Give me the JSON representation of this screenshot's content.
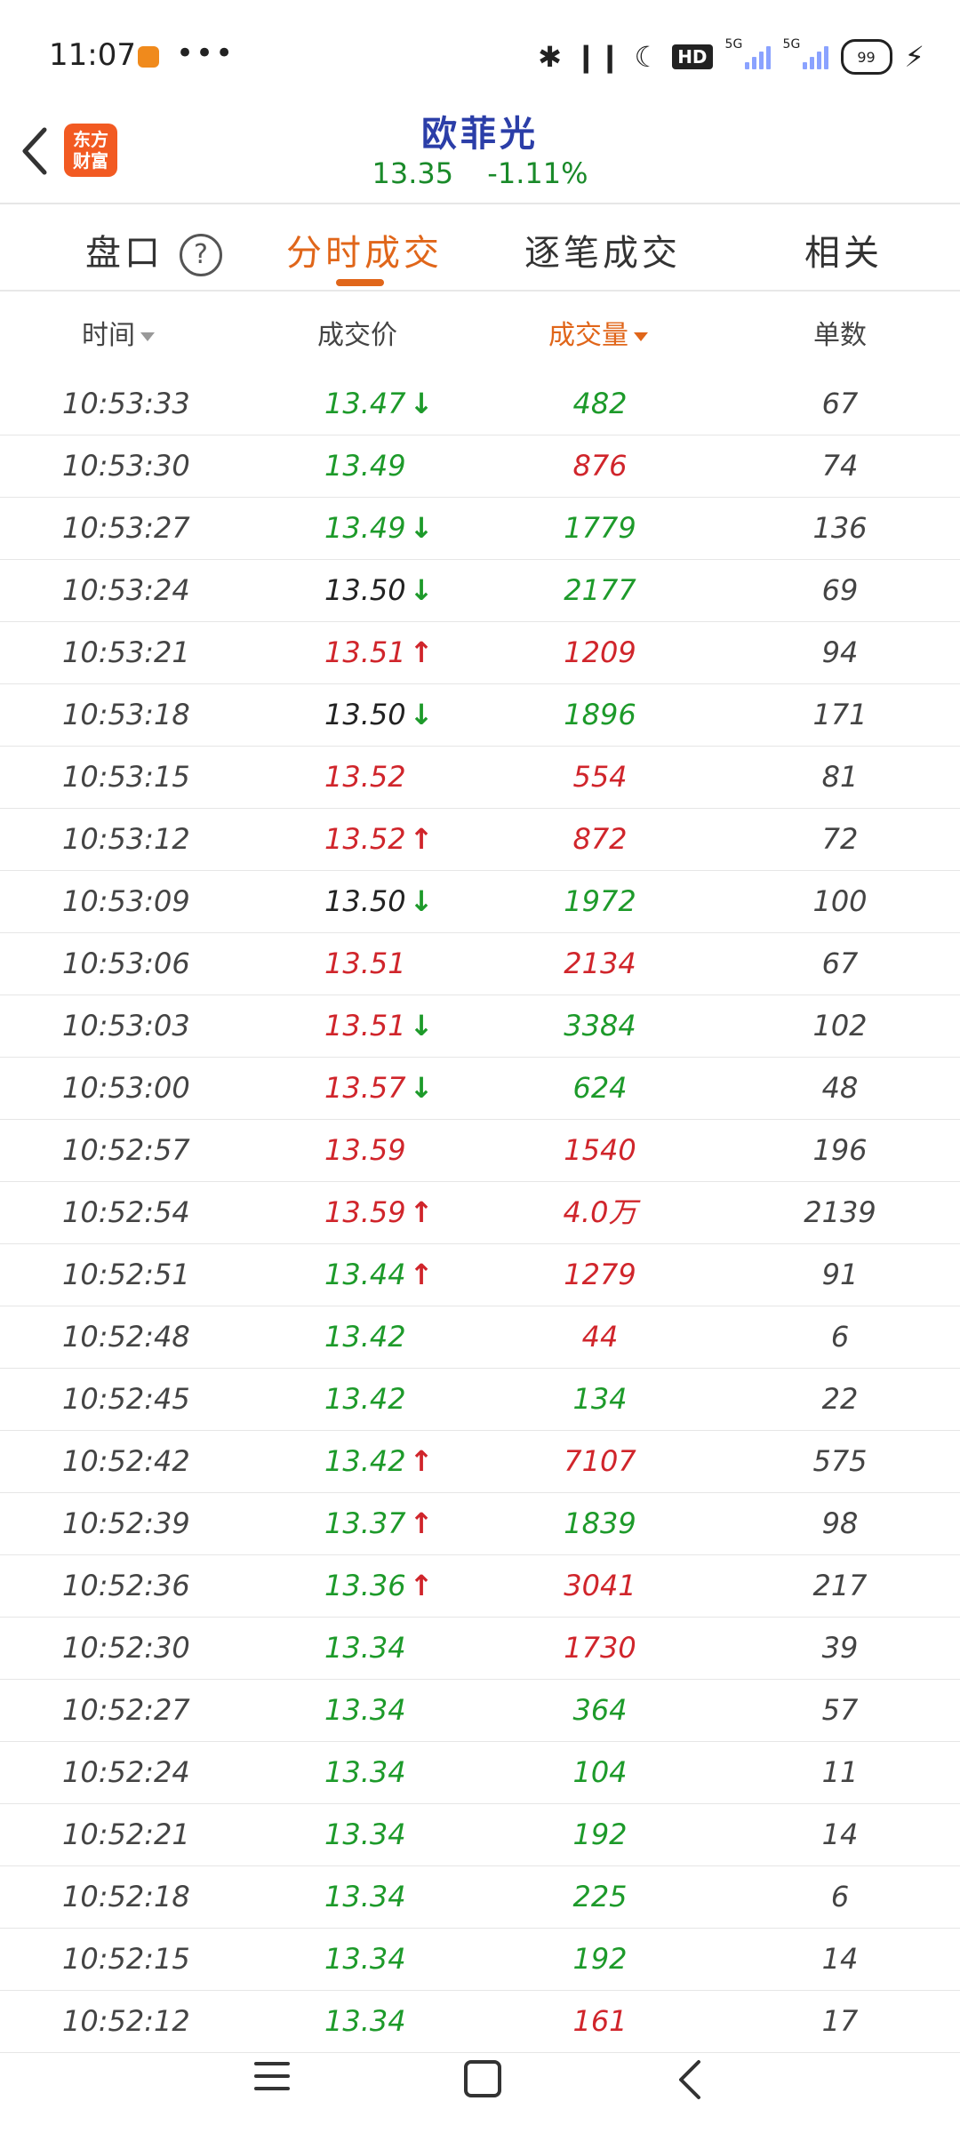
{
  "status_bar": {
    "time": "11:07",
    "dots": "•••",
    "icons": [
      "bluetooth-icon",
      "earbuds-icon",
      "moon-icon",
      "hd-icon",
      "signal-5g-1-icon",
      "signal-5g-2-icon",
      "battery-icon",
      "charging-icon"
    ],
    "hd": "HD",
    "signal_label": "5G",
    "battery": "99"
  },
  "header": {
    "logo_line1": "东方",
    "logo_line2": "财富",
    "title": "欧菲光",
    "price": "13.35",
    "change": "-1.11%"
  },
  "tabs": [
    {
      "label": "盘口"
    },
    {
      "label": "分时成交"
    },
    {
      "label": "逐笔成交"
    },
    {
      "label": "相关"
    }
  ],
  "help_glyph": "?",
  "columns": {
    "time": "时间",
    "price": "成交价",
    "volume": "成交量",
    "count": "单数"
  },
  "colors": {
    "up": "#d0252b",
    "down": "#1d9a2a",
    "flat": "#222222",
    "accent": "#e0661a",
    "title": "#2b3ea8"
  },
  "rows": [
    {
      "time": "10:53:33",
      "price": "13.47",
      "price_color": "green",
      "arrow": "↓",
      "arrow_color": "green",
      "volume": "482",
      "volume_color": "green",
      "count": "67"
    },
    {
      "time": "10:53:30",
      "price": "13.49",
      "price_color": "green",
      "arrow": "",
      "arrow_color": "",
      "volume": "876",
      "volume_color": "red",
      "count": "74"
    },
    {
      "time": "10:53:27",
      "price": "13.49",
      "price_color": "green",
      "arrow": "↓",
      "arrow_color": "green",
      "volume": "1779",
      "volume_color": "green",
      "count": "136"
    },
    {
      "time": "10:53:24",
      "price": "13.50",
      "price_color": "black",
      "arrow": "↓",
      "arrow_color": "green",
      "volume": "2177",
      "volume_color": "green",
      "count": "69"
    },
    {
      "time": "10:53:21",
      "price": "13.51",
      "price_color": "red",
      "arrow": "↑",
      "arrow_color": "red",
      "volume": "1209",
      "volume_color": "red",
      "count": "94"
    },
    {
      "time": "10:53:18",
      "price": "13.50",
      "price_color": "black",
      "arrow": "↓",
      "arrow_color": "green",
      "volume": "1896",
      "volume_color": "green",
      "count": "171"
    },
    {
      "time": "10:53:15",
      "price": "13.52",
      "price_color": "red",
      "arrow": "",
      "arrow_color": "",
      "volume": "554",
      "volume_color": "red",
      "count": "81"
    },
    {
      "time": "10:53:12",
      "price": "13.52",
      "price_color": "red",
      "arrow": "↑",
      "arrow_color": "red",
      "volume": "872",
      "volume_color": "red",
      "count": "72"
    },
    {
      "time": "10:53:09",
      "price": "13.50",
      "price_color": "black",
      "arrow": "↓",
      "arrow_color": "green",
      "volume": "1972",
      "volume_color": "green",
      "count": "100"
    },
    {
      "time": "10:53:06",
      "price": "13.51",
      "price_color": "red",
      "arrow": "",
      "arrow_color": "",
      "volume": "2134",
      "volume_color": "red",
      "count": "67"
    },
    {
      "time": "10:53:03",
      "price": "13.51",
      "price_color": "red",
      "arrow": "↓",
      "arrow_color": "green",
      "volume": "3384",
      "volume_color": "green",
      "count": "102"
    },
    {
      "time": "10:53:00",
      "price": "13.57",
      "price_color": "red",
      "arrow": "↓",
      "arrow_color": "green",
      "volume": "624",
      "volume_color": "green",
      "count": "48"
    },
    {
      "time": "10:52:57",
      "price": "13.59",
      "price_color": "red",
      "arrow": "",
      "arrow_color": "",
      "volume": "1540",
      "volume_color": "red",
      "count": "196"
    },
    {
      "time": "10:52:54",
      "price": "13.59",
      "price_color": "red",
      "arrow": "↑",
      "arrow_color": "red",
      "volume": "4.0万",
      "volume_color": "red",
      "count": "2139"
    },
    {
      "time": "10:52:51",
      "price": "13.44",
      "price_color": "green",
      "arrow": "↑",
      "arrow_color": "red",
      "volume": "1279",
      "volume_color": "red",
      "count": "91"
    },
    {
      "time": "10:52:48",
      "price": "13.42",
      "price_color": "green",
      "arrow": "",
      "arrow_color": "",
      "volume": "44",
      "volume_color": "red",
      "count": "6"
    },
    {
      "time": "10:52:45",
      "price": "13.42",
      "price_color": "green",
      "arrow": "",
      "arrow_color": "",
      "volume": "134",
      "volume_color": "green",
      "count": "22"
    },
    {
      "time": "10:52:42",
      "price": "13.42",
      "price_color": "green",
      "arrow": "↑",
      "arrow_color": "red",
      "volume": "7107",
      "volume_color": "red",
      "count": "575"
    },
    {
      "time": "10:52:39",
      "price": "13.37",
      "price_color": "green",
      "arrow": "↑",
      "arrow_color": "red",
      "volume": "1839",
      "volume_color": "green",
      "count": "98"
    },
    {
      "time": "10:52:36",
      "price": "13.36",
      "price_color": "green",
      "arrow": "↑",
      "arrow_color": "red",
      "volume": "3041",
      "volume_color": "red",
      "count": "217"
    },
    {
      "time": "10:52:30",
      "price": "13.34",
      "price_color": "green",
      "arrow": "",
      "arrow_color": "",
      "volume": "1730",
      "volume_color": "red",
      "count": "39"
    },
    {
      "time": "10:52:27",
      "price": "13.34",
      "price_color": "green",
      "arrow": "",
      "arrow_color": "",
      "volume": "364",
      "volume_color": "green",
      "count": "57"
    },
    {
      "time": "10:52:24",
      "price": "13.34",
      "price_color": "green",
      "arrow": "",
      "arrow_color": "",
      "volume": "104",
      "volume_color": "green",
      "count": "11"
    },
    {
      "time": "10:52:21",
      "price": "13.34",
      "price_color": "green",
      "arrow": "",
      "arrow_color": "",
      "volume": "192",
      "volume_color": "green",
      "count": "14"
    },
    {
      "time": "10:52:18",
      "price": "13.34",
      "price_color": "green",
      "arrow": "",
      "arrow_color": "",
      "volume": "225",
      "volume_color": "green",
      "count": "6"
    },
    {
      "time": "10:52:15",
      "price": "13.34",
      "price_color": "green",
      "arrow": "",
      "arrow_color": "",
      "volume": "192",
      "volume_color": "green",
      "count": "14"
    },
    {
      "time": "10:52:12",
      "price": "13.34",
      "price_color": "green",
      "arrow": "",
      "arrow_color": "",
      "volume": "161",
      "volume_color": "red",
      "count": "17"
    }
  ],
  "nav": {
    "icons": [
      "menu-icon",
      "home-icon",
      "back-icon"
    ]
  }
}
